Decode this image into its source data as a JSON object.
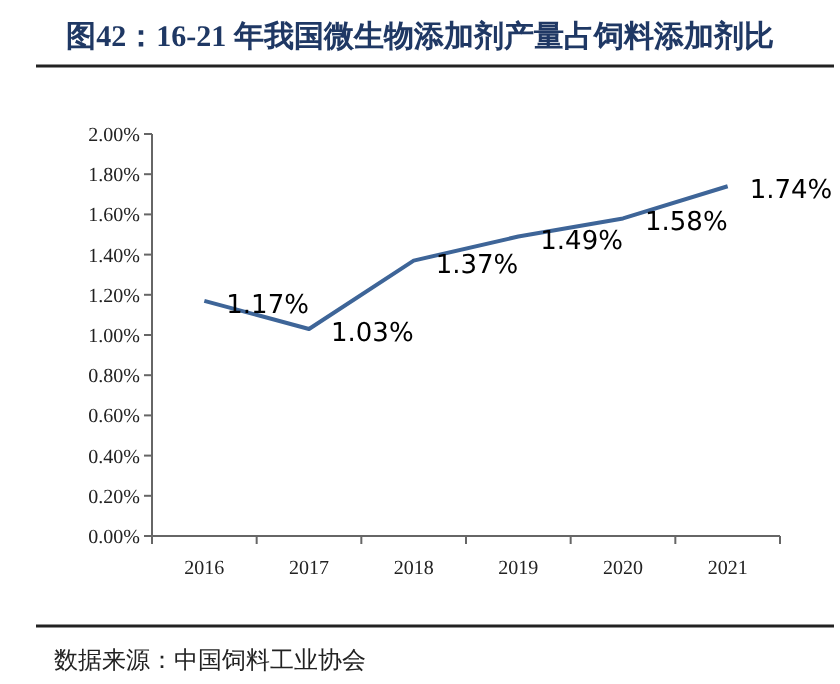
{
  "chart_data": {
    "type": "line",
    "title": "图42：16-21 年我国微生物添加剂产量占饲料添加剂比",
    "categories": [
      "2016",
      "2017",
      "2018",
      "2019",
      "2020",
      "2021"
    ],
    "series": [
      {
        "color": "#3e6598",
        "values": [
          1.17,
          1.03,
          1.37,
          1.49,
          1.58,
          1.74
        ],
        "value_labels": [
          "1.17%",
          "1.03%",
          "1.37%",
          "1.49%",
          "1.58%",
          "1.74%"
        ]
      }
    ],
    "ylim": [
      0,
      2
    ],
    "yticks": [
      {
        "value": 0,
        "label": "0.00%"
      },
      {
        "value": 0.2,
        "label": "0.20%"
      },
      {
        "value": 0.4,
        "label": "0.40%"
      },
      {
        "value": 0.6,
        "label": "0.60%"
      },
      {
        "value": 0.8,
        "label": "0.80%"
      },
      {
        "value": 1,
        "label": "1.00%"
      },
      {
        "value": 1.2,
        "label": "1.20%"
      },
      {
        "value": 1.4,
        "label": "1.40%"
      },
      {
        "value": 1.6,
        "label": "1.60%"
      },
      {
        "value": 1.8,
        "label": "1.80%"
      },
      {
        "value": 2,
        "label": "2.00%"
      }
    ],
    "grid": false,
    "marker": "none",
    "line_style": "solid",
    "annotations": [
      "数据来源：中国饲料工业协会"
    ]
  }
}
